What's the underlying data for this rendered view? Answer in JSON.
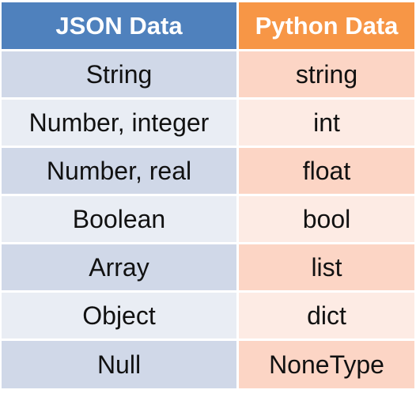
{
  "header": {
    "json_label": "JSON Data",
    "python_label": "Python Data"
  },
  "rows": [
    {
      "json": "String",
      "python": "string"
    },
    {
      "json": "Number, integer",
      "python": "int"
    },
    {
      "json": "Number, real",
      "python": "float"
    },
    {
      "json": "Boolean",
      "python": "bool"
    },
    {
      "json": "Array",
      "python": "list"
    },
    {
      "json": "Object",
      "python": "dict"
    },
    {
      "json": "Null",
      "python": "NoneType"
    }
  ],
  "colors": {
    "json_header": "#4f81bd",
    "python_header": "#f79646",
    "json_row_dark": "#d0d8e8",
    "json_row_light": "#e9edf4",
    "python_row_dark": "#fcd5c5",
    "python_row_light": "#fdebe4"
  }
}
